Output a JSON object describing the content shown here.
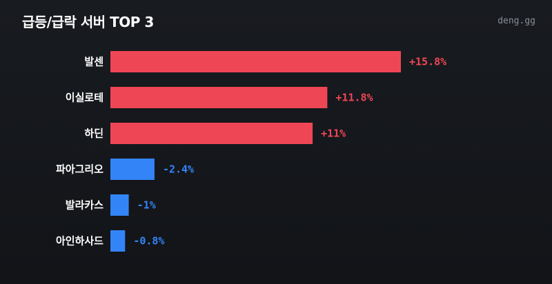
{
  "header": {
    "title": "급등/급락 서버 TOP 3",
    "watermark": "deng.gg"
  },
  "colors": {
    "positive": "#ef4655",
    "negative": "#3385f7",
    "label": "#ffffff",
    "watermark": "#8a8f98"
  },
  "chart_data": {
    "type": "bar",
    "orientation": "horizontal",
    "title": "급등/급락 서버 TOP 3",
    "categories": [
      "발센",
      "이실로테",
      "하딘",
      "파아그리오",
      "발라카스",
      "아인하사드"
    ],
    "values": [
      15.8,
      11.8,
      11,
      -2.4,
      -1,
      -0.8
    ],
    "value_labels": [
      "+15.8%",
      "+11.8%",
      "+11%",
      "-2.4%",
      "-1%",
      "-0.8%"
    ],
    "unit": "%",
    "grid": false,
    "legend": "none"
  }
}
